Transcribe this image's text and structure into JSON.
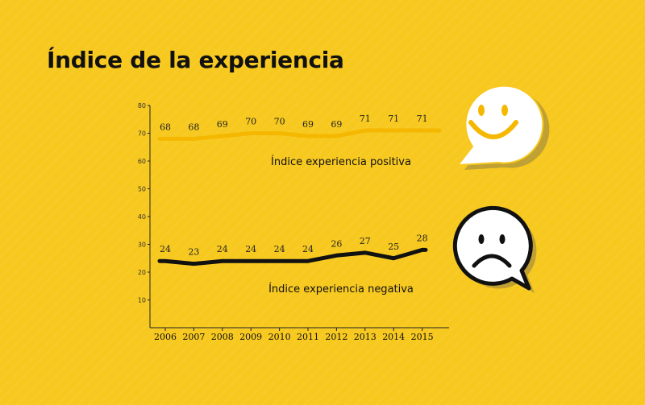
{
  "title": "Índice de la experiencia",
  "chart_data": {
    "type": "line",
    "title": "Índice de la experiencia",
    "x": [
      "2006",
      "2007",
      "2008",
      "2009",
      "2010",
      "2011",
      "2012",
      "2013",
      "2014",
      "2015"
    ],
    "y_ticks": [
      "80",
      "70",
      "60",
      "50",
      "40",
      "30",
      "20",
      "10"
    ],
    "ylim": [
      0,
      80
    ],
    "grid": false,
    "series": [
      {
        "name": "Índice experiencia positiva",
        "values": [
          68,
          68,
          69,
          70,
          70,
          69,
          69,
          71,
          71,
          71
        ],
        "color": "#f5b800"
      },
      {
        "name": "Índice experiencia negativa",
        "values": [
          24,
          23,
          24,
          24,
          24,
          24,
          26,
          27,
          25,
          28
        ],
        "color": "#111111"
      }
    ]
  },
  "icons": {
    "happy": "happy-face-speech-bubble-icon",
    "sad": "sad-face-speech-bubble-icon"
  }
}
